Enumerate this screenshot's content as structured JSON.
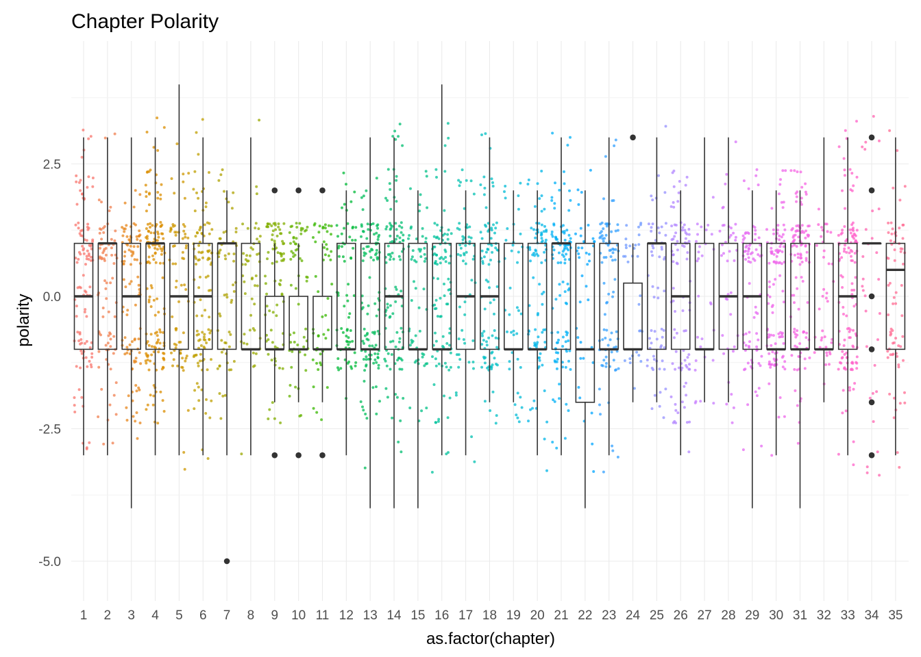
{
  "chart_data": {
    "type": "box+jitter",
    "title": "Chapter Polarity",
    "xlabel": "as.factor(chapter)",
    "ylabel": "polarity",
    "ylim": [
      -5.5,
      4.3
    ],
    "yticks": [
      -5.0,
      -2.5,
      0.0,
      2.5
    ],
    "ytick_labels": [
      "-5.0",
      "-2.5",
      "0.0",
      "2.5"
    ],
    "grid": true,
    "legend": "none",
    "categories": [
      "1",
      "2",
      "3",
      "4",
      "5",
      "6",
      "7",
      "8",
      "9",
      "10",
      "11",
      "12",
      "13",
      "14",
      "15",
      "16",
      "17",
      "18",
      "19",
      "20",
      "21",
      "22",
      "23",
      "24",
      "25",
      "26",
      "27",
      "28",
      "29",
      "30",
      "31",
      "32",
      "33",
      "34",
      "35"
    ],
    "boxes": [
      {
        "q1": -1,
        "median": 0,
        "q3": 1,
        "whisker_low": -3,
        "whisker_high": 3,
        "outliers": []
      },
      {
        "q1": -1,
        "median": 1,
        "q3": 1,
        "whisker_low": -3,
        "whisker_high": 3,
        "outliers": []
      },
      {
        "q1": -1,
        "median": 0,
        "q3": 1,
        "whisker_low": -4,
        "whisker_high": 3,
        "outliers": []
      },
      {
        "q1": -1,
        "median": 1,
        "q3": 1,
        "whisker_low": -3,
        "whisker_high": 3,
        "outliers": []
      },
      {
        "q1": -1,
        "median": 0,
        "q3": 1,
        "whisker_low": -3,
        "whisker_high": 4,
        "outliers": []
      },
      {
        "q1": -1,
        "median": 0,
        "q3": 1,
        "whisker_low": -3,
        "whisker_high": 3,
        "outliers": []
      },
      {
        "q1": -1,
        "median": 1,
        "q3": 1,
        "whisker_low": -3,
        "whisker_high": 2,
        "outliers": [
          -5
        ]
      },
      {
        "q1": -1,
        "median": -1,
        "q3": 1,
        "whisker_low": -3,
        "whisker_high": 3,
        "outliers": []
      },
      {
        "q1": -1,
        "median": -1,
        "q3": 0,
        "whisker_low": -2,
        "whisker_high": 1,
        "outliers": [
          2,
          -3
        ]
      },
      {
        "q1": -1,
        "median": -1,
        "q3": 0,
        "whisker_low": -2,
        "whisker_high": 1,
        "outliers": [
          2,
          -3
        ]
      },
      {
        "q1": -1,
        "median": -1,
        "q3": 0,
        "whisker_low": -2,
        "whisker_high": 1,
        "outliers": [
          2,
          -3
        ]
      },
      {
        "q1": -1,
        "median": -1,
        "q3": 1,
        "whisker_low": -3,
        "whisker_high": 2,
        "outliers": []
      },
      {
        "q1": -1,
        "median": -1,
        "q3": 1,
        "whisker_low": -4,
        "whisker_high": 3,
        "outliers": []
      },
      {
        "q1": -1,
        "median": 0,
        "q3": 1,
        "whisker_low": -4,
        "whisker_high": 3,
        "outliers": []
      },
      {
        "q1": -1,
        "median": -1,
        "q3": 1,
        "whisker_low": -4,
        "whisker_high": 2,
        "outliers": []
      },
      {
        "q1": -1,
        "median": -1,
        "q3": 1,
        "whisker_low": -3,
        "whisker_high": 4,
        "outliers": []
      },
      {
        "q1": -1,
        "median": 0,
        "q3": 1,
        "whisker_low": -3,
        "whisker_high": 2,
        "outliers": []
      },
      {
        "q1": -1,
        "median": 0,
        "q3": 1,
        "whisker_low": -2,
        "whisker_high": 3,
        "outliers": []
      },
      {
        "q1": -1,
        "median": -1,
        "q3": 1,
        "whisker_low": -2,
        "whisker_high": 2,
        "outliers": []
      },
      {
        "q1": -1,
        "median": -1,
        "q3": 1,
        "whisker_low": -3,
        "whisker_high": 2,
        "outliers": []
      },
      {
        "q1": -1,
        "median": 1,
        "q3": 1,
        "whisker_low": -3,
        "whisker_high": 3,
        "outliers": []
      },
      {
        "q1": -2,
        "median": -1,
        "q3": 1,
        "whisker_low": -4,
        "whisker_high": 2,
        "outliers": []
      },
      {
        "q1": -1,
        "median": -1,
        "q3": 1,
        "whisker_low": -3,
        "whisker_high": 3,
        "outliers": []
      },
      {
        "q1": -1,
        "median": -1,
        "q3": 0.25,
        "whisker_low": -2,
        "whisker_high": 1,
        "outliers": [
          3
        ]
      },
      {
        "q1": -1,
        "median": 1,
        "q3": 1,
        "whisker_low": -2,
        "whisker_high": 3,
        "outliers": []
      },
      {
        "q1": -1,
        "median": 0,
        "q3": 1,
        "whisker_low": -3,
        "whisker_high": 2,
        "outliers": []
      },
      {
        "q1": -1,
        "median": -1,
        "q3": 1,
        "whisker_low": -2,
        "whisker_high": 3,
        "outliers": []
      },
      {
        "q1": -1,
        "median": 0,
        "q3": 1,
        "whisker_low": -2,
        "whisker_high": 3,
        "outliers": []
      },
      {
        "q1": -1,
        "median": 0,
        "q3": 1,
        "whisker_low": -4,
        "whisker_high": 2,
        "outliers": []
      },
      {
        "q1": -1,
        "median": -1,
        "q3": 1,
        "whisker_low": -3,
        "whisker_high": 2,
        "outliers": []
      },
      {
        "q1": -1,
        "median": -1,
        "q3": 1,
        "whisker_low": -4,
        "whisker_high": 2,
        "outliers": []
      },
      {
        "q1": -1,
        "median": -1,
        "q3": 1,
        "whisker_low": -2,
        "whisker_high": 3,
        "outliers": []
      },
      {
        "q1": -1,
        "median": 0,
        "q3": 1,
        "whisker_low": -3,
        "whisker_high": 3,
        "outliers": []
      },
      {
        "q1": 1,
        "median": 1,
        "q3": 1,
        "whisker_low": 1,
        "whisker_high": 1,
        "outliers": [
          3,
          2,
          0,
          -1,
          -2,
          -3
        ]
      },
      {
        "q1": -1,
        "median": 0.5,
        "q3": 1,
        "whisker_low": -3,
        "whisker_high": 3,
        "outliers": []
      }
    ],
    "point_counts": [
      110,
      80,
      100,
      150,
      70,
      110,
      60,
      50,
      80,
      60,
      50,
      70,
      110,
      110,
      60,
      100,
      60,
      90,
      40,
      90,
      110,
      40,
      90,
      30,
      60,
      90,
      30,
      40,
      80,
      110,
      110,
      40,
      130,
      30,
      70
    ],
    "colors": [
      "#F8766D",
      "#F07F4F",
      "#E7861B",
      "#DB8E00",
      "#CE9700",
      "#BF9F00",
      "#AEA200",
      "#9AA800",
      "#82AD00",
      "#64B200",
      "#38B700",
      "#00BA38",
      "#00BC59",
      "#00BE70",
      "#00C086",
      "#00C19C",
      "#00C0B0",
      "#00BFC4",
      "#00BBD6",
      "#00B6E7",
      "#00B0F6",
      "#00A5FF",
      "#33A0FF",
      "#7099FF",
      "#9590FF",
      "#B186FF",
      "#C77CFF",
      "#D772F9",
      "#E56AF1",
      "#EF67EB",
      "#F564E3",
      "#FB61D7",
      "#FF61C9",
      "#FF64B0",
      "#FF6C93"
    ]
  }
}
